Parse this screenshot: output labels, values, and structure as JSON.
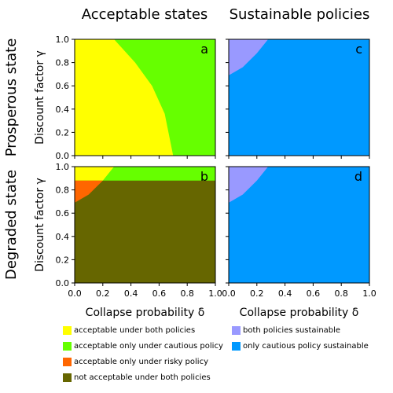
{
  "figure": {
    "column_titles": [
      "Acceptable states",
      "Sustainable policies"
    ],
    "row_titles": [
      "Prosperous state",
      "Degraded state"
    ],
    "xlabel": "Collapse probability δ",
    "ylabel": "Discount factor γ",
    "tick_labels": [
      "0.0",
      "0.2",
      "0.4",
      "0.6",
      "0.8",
      "1.0"
    ]
  },
  "colors": {
    "yellow": "#ffff00",
    "green": "#66ff00",
    "orange": "#ff6600",
    "olive": "#666600",
    "lavender": "#9999ff",
    "blue": "#0099ff"
  },
  "legend": {
    "left": [
      {
        "color": "#ffff00",
        "label": "acceptable under both policies"
      },
      {
        "color": "#66ff00",
        "label": "acceptable only under cautious policy"
      },
      {
        "color": "#ff6600",
        "label": "acceptable only under risky policy"
      },
      {
        "color": "#666600",
        "label": "not acceptable under both policies"
      }
    ],
    "right": [
      {
        "color": "#9999ff",
        "label": "both policies sustainable"
      },
      {
        "color": "#0099ff",
        "label": "only cautious policy sustainable"
      }
    ]
  },
  "chart_data": [
    {
      "id": "a",
      "type": "heatmap",
      "panel_label": "a",
      "xlim": [
        0,
        1
      ],
      "ylim": [
        0,
        1
      ],
      "background_color": "#66ff00",
      "regions": [
        {
          "color": "#ffff00",
          "boundary": [
            [
              0,
              0
            ],
            [
              0.7,
              0
            ],
            [
              0.64,
              0.36
            ],
            [
              0.55,
              0.6
            ],
            [
              0.43,
              0.8
            ],
            [
              0.28,
              1.0
            ],
            [
              0,
              1.0
            ]
          ]
        }
      ]
    },
    {
      "id": "b",
      "type": "heatmap",
      "panel_label": "b",
      "xlim": [
        0,
        1
      ],
      "ylim": [
        0,
        1
      ],
      "background_color": "#666600",
      "regions": [
        {
          "color": "#66ff00",
          "boundary": [
            [
              0,
              0.88
            ],
            [
              1,
              0.88
            ],
            [
              1,
              1.0
            ],
            [
              0,
              1.0
            ]
          ]
        },
        {
          "color": "#ffff00",
          "boundary": [
            [
              0,
              0.88
            ],
            [
              0.2,
              0.88
            ],
            [
              0.28,
              1.0
            ],
            [
              0,
              1.0
            ]
          ]
        },
        {
          "color": "#ff6600",
          "boundary": [
            [
              0,
              0.69
            ],
            [
              0.1,
              0.76
            ],
            [
              0.2,
              0.88
            ],
            [
              0,
              0.88
            ]
          ]
        }
      ]
    },
    {
      "id": "c",
      "type": "heatmap",
      "panel_label": "c",
      "xlim": [
        0,
        1
      ],
      "ylim": [
        0,
        1
      ],
      "background_color": "#0099ff",
      "regions": [
        {
          "color": "#9999ff",
          "boundary": [
            [
              0,
              0.69
            ],
            [
              0.1,
              0.76
            ],
            [
              0.2,
              0.88
            ],
            [
              0.28,
              1.0
            ],
            [
              0,
              1.0
            ]
          ]
        }
      ]
    },
    {
      "id": "d",
      "type": "heatmap",
      "panel_label": "d",
      "xlim": [
        0,
        1
      ],
      "ylim": [
        0,
        1
      ],
      "background_color": "#0099ff",
      "regions": [
        {
          "color": "#9999ff",
          "boundary": [
            [
              0,
              0.69
            ],
            [
              0.1,
              0.76
            ],
            [
              0.2,
              0.88
            ],
            [
              0.28,
              1.0
            ],
            [
              0,
              1.0
            ]
          ]
        }
      ]
    }
  ]
}
